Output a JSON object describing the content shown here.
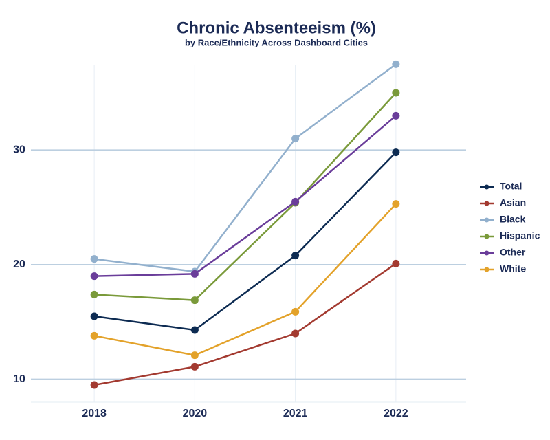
{
  "chart_data": {
    "type": "line",
    "title": "Chronic Absenteeism (%)",
    "subtitle": "by Race/Ethnicity Across Dashboard Cities",
    "categories": [
      "2018",
      "2020",
      "2021",
      "2022"
    ],
    "series": [
      {
        "name": "Total",
        "color": "#0d2b52",
        "values": [
          15.5,
          14.3,
          20.8,
          29.8
        ]
      },
      {
        "name": "Asian",
        "color": "#a33a30",
        "values": [
          9.5,
          11.1,
          14.0,
          20.1
        ]
      },
      {
        "name": "Black",
        "color": "#92b0cd",
        "values": [
          20.5,
          19.4,
          31.0,
          37.5
        ]
      },
      {
        "name": "Hispanic",
        "color": "#7a9a3a",
        "values": [
          17.4,
          16.9,
          25.4,
          35.0
        ]
      },
      {
        "name": "Other",
        "color": "#6a3d9a",
        "values": [
          19.0,
          19.2,
          25.5,
          33.0
        ]
      },
      {
        "name": "White",
        "color": "#e3a22a",
        "values": [
          13.8,
          12.1,
          15.9,
          25.3
        ]
      }
    ],
    "ylim": [
      8,
      38
    ],
    "yticks": [
      10,
      20,
      30
    ],
    "grid": true,
    "legend": "right"
  }
}
